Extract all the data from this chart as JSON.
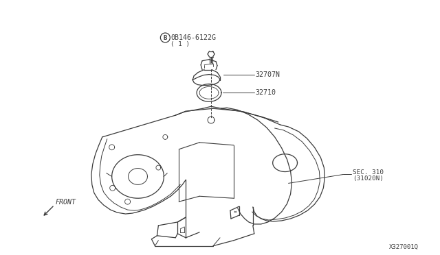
{
  "background_color": "#ffffff",
  "line_color": "#3a3a3a",
  "text_color": "#3a3a3a",
  "fig_width": 6.4,
  "fig_height": 3.72,
  "dpi": 100,
  "labels": {
    "part1_code": "0B146-6122G",
    "part1_qty": "( 1 )",
    "part2_code": "32707N",
    "part3_code": "32710",
    "sec_label_1": "SEC. 310",
    "sec_label_2": "(31020N)",
    "front_label": "FRONT",
    "diagram_id": "X327001Q",
    "circled_B": "B"
  },
  "colors": {
    "line": "#3a3a3a",
    "bg": "#ffffff",
    "text": "#3a3a3a"
  }
}
